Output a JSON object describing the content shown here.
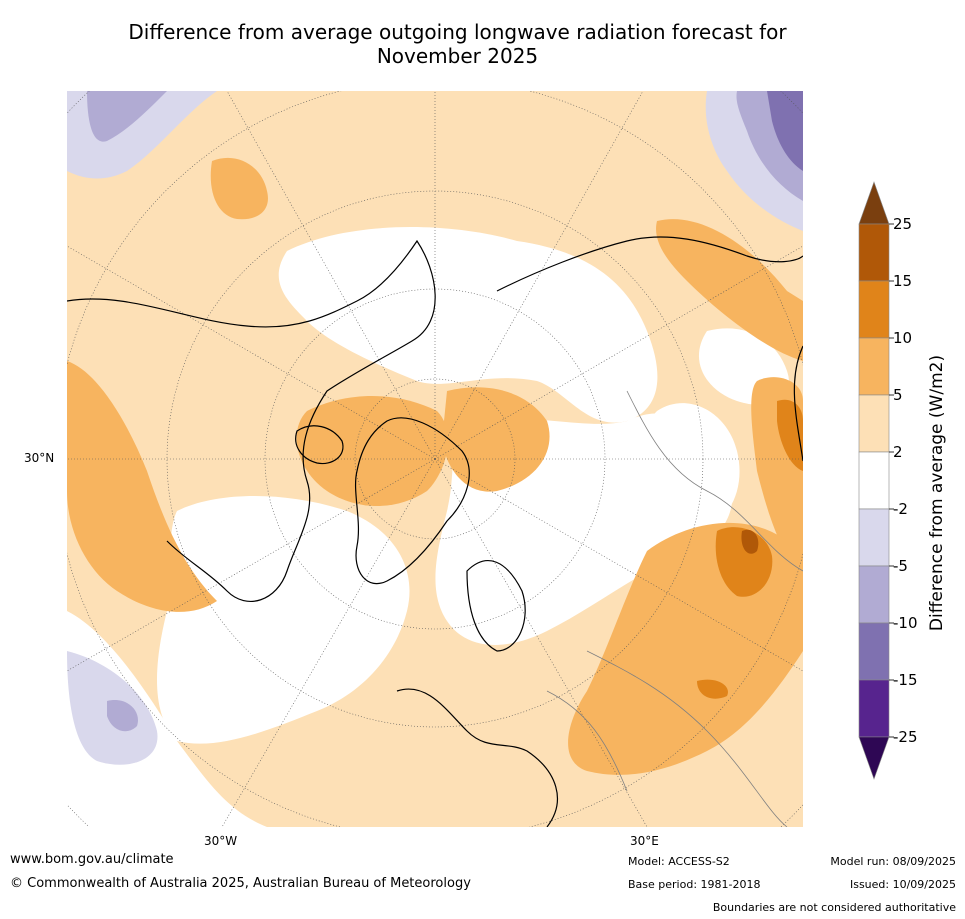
{
  "title_line1": "Difference from average outgoing longwave radiation forecast for",
  "title_line2": "November 2025",
  "map": {
    "projection": "north-polar-stereographic",
    "labels": {
      "lat": "30°N",
      "lon_west": "30°W",
      "lon_east": "30°E"
    },
    "colors": {
      "land_outline": "#000000",
      "borders": "#808080",
      "graticule": "#555555"
    }
  },
  "colorbar": {
    "title": "Difference from average (W/m2)",
    "ticks": [
      "25",
      "15",
      "10",
      "5",
      "2",
      "-2",
      "-5",
      "-10",
      "-15",
      "-25"
    ],
    "bins": [
      {
        "range": ">25",
        "color": "#7a3f0f"
      },
      {
        "range": "15 to 25",
        "color": "#b05808"
      },
      {
        "range": "10 to 15",
        "color": "#e0841a"
      },
      {
        "range": "5 to 10",
        "color": "#f7b45f"
      },
      {
        "range": "2 to 5",
        "color": "#fde0b6"
      },
      {
        "range": "-2 to 2",
        "color": "#ffffff"
      },
      {
        "range": "-5 to -2",
        "color": "#d9d8ec"
      },
      {
        "range": "-10 to -5",
        "color": "#b1abd3"
      },
      {
        "range": "-15 to -10",
        "color": "#7f71b0"
      },
      {
        "range": "-25 to -15",
        "color": "#57248e"
      },
      {
        "range": "<-25",
        "color": "#2e0754"
      }
    ]
  },
  "footer": {
    "url": "www.bom.gov.au/climate",
    "copyright": "© Commonwealth of Australia 2025, Australian Bureau of Meteorology",
    "model": "Model: ACCESS-S2",
    "base_period": "Base period: 1981-2018",
    "model_run": "Model run: 08/09/2025",
    "issued": "Issued: 10/09/2025",
    "disclaimer": "Boundaries are not considered authoritative"
  }
}
